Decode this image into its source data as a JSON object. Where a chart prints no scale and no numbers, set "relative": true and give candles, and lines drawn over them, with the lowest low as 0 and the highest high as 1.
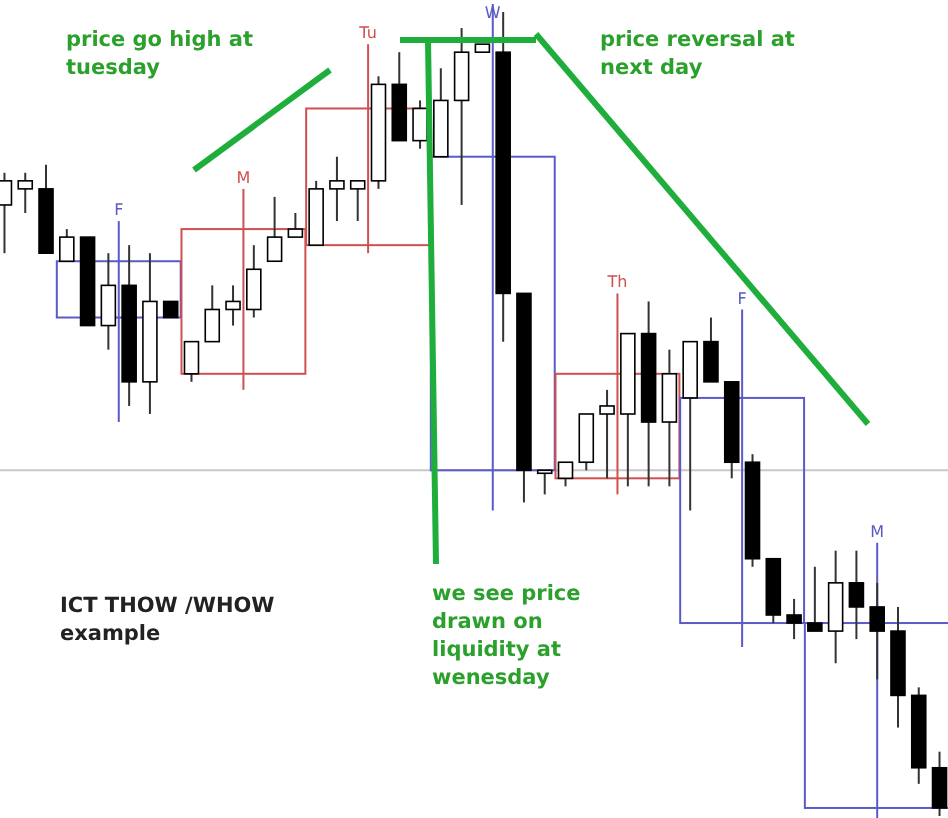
{
  "chart_data": {
    "type": "candlestick",
    "relative": true,
    "categories": [
      null,
      null,
      null,
      null,
      null,
      null,
      null,
      null,
      null,
      null,
      null,
      null,
      null,
      null,
      null,
      null,
      null,
      null,
      null,
      null,
      null,
      null,
      null,
      null,
      null,
      null,
      null,
      null,
      null,
      null,
      null,
      null,
      null,
      null,
      null,
      null,
      null,
      null,
      null,
      null,
      null,
      null,
      null,
      null,
      null,
      null
    ],
    "ohlc": [
      [
        0.76,
        0.8,
        0.7,
        0.79
      ],
      [
        0.78,
        0.8,
        0.75,
        0.79
      ],
      [
        0.78,
        0.81,
        0.7,
        0.7
      ],
      [
        0.69,
        0.73,
        0.69,
        0.72
      ],
      [
        0.72,
        0.72,
        0.61,
        0.61
      ],
      [
        0.61,
        0.7,
        0.58,
        0.66
      ],
      [
        0.66,
        0.71,
        0.51,
        0.54
      ],
      [
        0.54,
        0.7,
        0.5,
        0.64
      ],
      [
        0.64,
        0.64,
        0.62,
        0.62
      ],
      [
        0.55,
        0.59,
        0.54,
        0.59
      ],
      [
        0.59,
        0.66,
        0.59,
        0.63
      ],
      [
        0.63,
        0.66,
        0.61,
        0.64
      ],
      [
        0.63,
        0.71,
        0.62,
        0.68
      ],
      [
        0.69,
        0.77,
        0.69,
        0.72
      ],
      [
        0.72,
        0.75,
        0.72,
        0.73
      ],
      [
        0.71,
        0.79,
        0.71,
        0.78
      ],
      [
        0.78,
        0.82,
        0.74,
        0.79
      ],
      [
        0.78,
        0.79,
        0.74,
        0.79
      ],
      [
        0.79,
        0.92,
        0.78,
        0.91
      ],
      [
        0.91,
        0.95,
        0.84,
        0.84
      ],
      [
        0.84,
        0.89,
        0.83,
        0.88
      ],
      [
        0.82,
        0.93,
        0.82,
        0.89
      ],
      [
        0.89,
        0.98,
        0.76,
        0.95
      ],
      [
        0.95,
        0.96,
        0.95,
        0.96
      ],
      [
        0.95,
        1,
        0.59,
        0.65
      ],
      [
        0.65,
        0.65,
        0.39,
        0.43
      ],
      [
        0.43,
        0.43,
        0.4,
        0.43
      ],
      [
        0.42,
        0.44,
        0.41,
        0.44
      ],
      [
        0.44,
        0.5,
        0.43,
        0.5
      ],
      [
        0.5,
        0.53,
        0.42,
        0.51
      ],
      [
        0.5,
        0.6,
        0.41,
        0.6
      ],
      [
        0.6,
        0.64,
        0.41,
        0.49
      ],
      [
        0.49,
        0.58,
        0.41,
        0.55
      ],
      [
        0.52,
        0.59,
        0.38,
        0.59
      ],
      [
        0.59,
        0.62,
        0.54,
        0.54
      ],
      [
        0.54,
        0.54,
        0.42,
        0.44
      ],
      [
        0.44,
        0.45,
        0.31,
        0.32
      ],
      [
        0.32,
        0.32,
        0.24,
        0.25
      ],
      [
        0.25,
        0.27,
        0.22,
        0.24
      ],
      [
        0.24,
        0.31,
        0.23,
        0.23
      ],
      [
        0.23,
        0.33,
        0.19,
        0.29
      ],
      [
        0.29,
        0.33,
        0.22,
        0.26
      ],
      [
        0.26,
        0.29,
        0.17,
        0.23
      ],
      [
        0.23,
        0.26,
        0.11,
        0.15
      ],
      [
        0.15,
        0.16,
        0.04,
        0.06
      ],
      [
        0.06,
        0.08,
        0,
        0.01
      ]
    ],
    "ref_lines": [
      {
        "axis": "y",
        "value": 0.43,
        "color": "#c8c8c8"
      }
    ],
    "annotations": [
      "price go high at tuesday",
      "price reversal at next day",
      "we see price drawn on liquidity at wenesday",
      "ICT THOW /WHOW example",
      "F",
      "M",
      "Tu",
      "W",
      "Th",
      "F",
      "M"
    ]
  }
}
